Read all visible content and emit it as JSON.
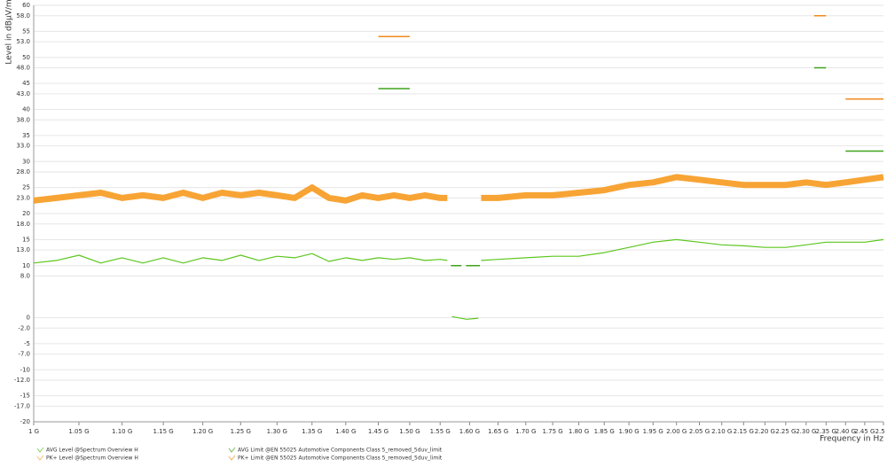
{
  "chart_data": {
    "type": "line",
    "y_label": "Level in dBµV/m",
    "x_label": "Frequency in Hz",
    "xscale": "log",
    "grid": true,
    "legend": "bottom-left",
    "xlim": [
      1000000000,
      2500000000
    ],
    "ylim": [
      -20,
      60
    ],
    "yticks": [
      60,
      {
        "value": 58,
        "label": "58.0"
      },
      55,
      {
        "value": 53,
        "label": "53.0"
      },
      50,
      {
        "value": 48,
        "label": "48.0"
      },
      45,
      {
        "value": 43,
        "label": "43.0"
      },
      40,
      {
        "value": 38,
        "label": "38.0"
      },
      35,
      {
        "value": 33,
        "label": "33.0"
      },
      30,
      {
        "value": 28,
        "label": "28.0"
      },
      25,
      {
        "value": 23,
        "label": "23.0"
      },
      20,
      {
        "value": 18,
        "label": "18.0"
      },
      15,
      {
        "value": 13,
        "label": "13.0"
      },
      10,
      {
        "value": 8,
        "label": "8.0"
      },
      0,
      {
        "value": -2,
        "label": "-2.0"
      },
      -5,
      {
        "value": -7,
        "label": "-7.0"
      },
      -10,
      {
        "value": -12,
        "label": "-12.0"
      },
      -15,
      {
        "value": -17,
        "label": "-17.0"
      },
      -20
    ],
    "xticks": [
      {
        "value": 1000000000,
        "label": "1 G"
      },
      {
        "value": 1050000000,
        "label": "1.05 G"
      },
      {
        "value": 1100000000,
        "label": "1.10 G"
      },
      {
        "value": 1150000000,
        "label": "1.15 G"
      },
      {
        "value": 1200000000,
        "label": "1.20 G"
      },
      {
        "value": 1250000000,
        "label": "1.25 G"
      },
      {
        "value": 1300000000,
        "label": "1.30 G"
      },
      {
        "value": 1350000000,
        "label": "1.35 G"
      },
      {
        "value": 1400000000,
        "label": "1.40 G"
      },
      {
        "value": 1450000000,
        "label": "1.45 G"
      },
      {
        "value": 1500000000,
        "label": "1.50 G"
      },
      {
        "value": 1550000000,
        "label": "1.55 G"
      },
      {
        "value": 1600000000,
        "label": "1.60 G"
      },
      {
        "value": 1650000000,
        "label": "1.65 G"
      },
      {
        "value": 1700000000,
        "label": "1.70 G"
      },
      {
        "value": 1750000000,
        "label": "1.75 G"
      },
      {
        "value": 1800000000,
        "label": "1.80 G"
      },
      {
        "value": 1850000000,
        "label": "1.85 G"
      },
      {
        "value": 1900000000,
        "label": "1.90 G"
      },
      {
        "value": 1950000000,
        "label": "1.95 G"
      },
      {
        "value": 2000000000,
        "label": "2.00 G"
      },
      {
        "value": 2050000000,
        "label": "2.05 G"
      },
      {
        "value": 2100000000,
        "label": "2.10 G"
      },
      {
        "value": 2150000000,
        "label": "2.15 G"
      },
      {
        "value": 2200000000,
        "label": "2.20 G"
      },
      {
        "value": 2250000000,
        "label": "2.25 G"
      },
      {
        "value": 2300000000,
        "label": "2.30 G"
      },
      {
        "value": 2350000000,
        "label": "2.35 G"
      },
      {
        "value": 2400000000,
        "label": "2.40 G"
      },
      {
        "value": 2450000000,
        "label": "2.45 G"
      },
      {
        "value": 2500000000,
        "label": "2.5 G"
      }
    ],
    "x": [
      1000000000,
      1025000000,
      1050000000,
      1075000000,
      1100000000,
      1125000000,
      1150000000,
      1175000000,
      1200000000,
      1225000000,
      1250000000,
      1275000000,
      1300000000,
      1325000000,
      1350000000,
      1375000000,
      1400000000,
      1425000000,
      1450000000,
      1475000000,
      1500000000,
      1525000000,
      1550000000,
      1562000000,
      1566000000,
      1570000000,
      1595000000,
      1615000000,
      1617000000,
      1620000000,
      1650000000,
      1700000000,
      1750000000,
      1800000000,
      1850000000,
      1900000000,
      1950000000,
      2000000000,
      2050000000,
      2100000000,
      2150000000,
      2200000000,
      2250000000,
      2300000000,
      2350000000,
      2400000000,
      2450000000,
      2500000000
    ],
    "series": [
      {
        "name": "AVG Level @Spectrum Overview H",
        "color": "#5cc61e",
        "width": 1.2,
        "values": [
          10.5,
          11,
          12,
          10.5,
          11.5,
          10.5,
          11.5,
          10.5,
          11.5,
          11,
          12,
          11,
          11.8,
          11.5,
          12.3,
          10.8,
          11.5,
          11,
          11.5,
          11.2,
          11.5,
          11,
          11.2,
          11,
          null,
          0.2,
          -0.3,
          -0.1,
          null,
          11,
          11.2,
          11.5,
          11.8,
          11.8,
          12.5,
          13.5,
          14.5,
          15,
          14.5,
          14,
          13.8,
          13.5,
          13.5,
          14,
          14.5,
          14.5,
          14.5,
          15
        ]
      },
      {
        "name": "PK+ Level @Spectrum Overview H",
        "color": "#f7a435",
        "width": 7,
        "values": [
          22.5,
          23,
          23.5,
          24,
          23,
          23.5,
          23,
          24,
          23,
          24,
          23.5,
          24,
          23.5,
          23,
          25,
          23,
          22.5,
          23.5,
          23,
          23.5,
          23,
          23.5,
          23,
          23,
          null,
          null,
          null,
          null,
          null,
          23,
          23,
          23.5,
          23.5,
          24,
          24.5,
          25.5,
          26,
          27,
          26.5,
          26,
          25.5,
          25.5,
          25.5,
          26,
          25.5,
          26,
          26.5,
          27
        ]
      },
      {
        "name": "AVG Limit @EN 55025 Automotive Components Class 5_removed_5duv_limit",
        "color": "#3fa31a",
        "width": 1.5,
        "x": [
          1450000000,
          1500000000,
          1500000000,
          1568000000,
          1586000000,
          1586000000,
          1594000000,
          1618000000,
          1618000000,
          2320000000,
          2350000000,
          2350000000,
          2400000000,
          2500000000
        ],
        "values": [
          44,
          44,
          null,
          10,
          10,
          null,
          10,
          10,
          null,
          48,
          48,
          null,
          32,
          32
        ]
      },
      {
        "name": "PK+ Limit @EN 55025 Automotive Components Class 5_removed_5duv_limit",
        "color": "#f08a1c",
        "width": 1.5,
        "x": [
          1450000000,
          1500000000,
          1500000000,
          2320000000,
          2350000000,
          2350000000,
          2400000000,
          2500000000
        ],
        "values": [
          54,
          54,
          null,
          58,
          58,
          null,
          42,
          42
        ]
      }
    ]
  }
}
